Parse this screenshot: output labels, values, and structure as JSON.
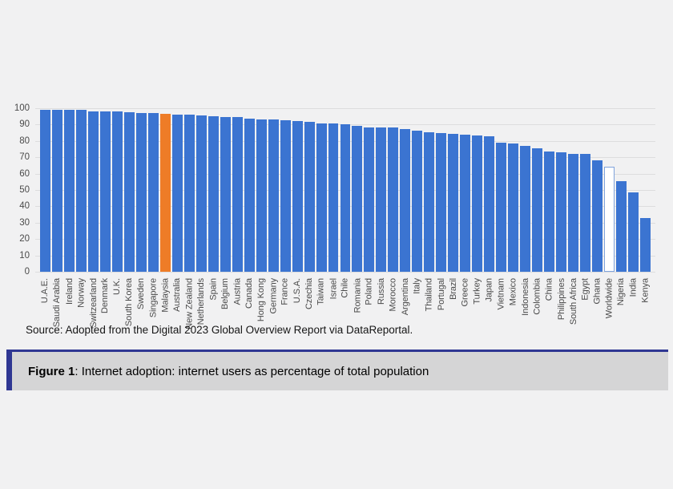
{
  "page": {
    "background": "#F1F1F2"
  },
  "source_note": "Source: Adopted from the Digital 2023 Global Overview Report via DataReportal.",
  "caption": {
    "label": "Figure 1",
    "text": ": Internet adoption: internet users as percentage of total population",
    "accent_color": "#2F3793",
    "background": "#D5D5D6"
  },
  "chart_data": {
    "type": "bar",
    "title": "",
    "xlabel": "",
    "ylabel": "",
    "ylim": [
      0,
      100
    ],
    "ytick_interval": 10,
    "grid": true,
    "legend": "none",
    "bar_color": "#3B74D1",
    "highlight_color": "#EE7C27",
    "outline_fill": "#FFFFFF",
    "outline_border": "#7FA3DC",
    "highlighted_category": "Malaysia",
    "outlined_category": "Worldwide",
    "categories": [
      "U.A.E.",
      "Saudi Arabia",
      "Ireland",
      "Norway",
      "Switzearland",
      "Denmark",
      "U.K.",
      "South Korea",
      "Sweden",
      "Singapore",
      "Malaysia",
      "Australia",
      "New Zealand",
      "Netherlands",
      "Spain",
      "Belgium",
      "Austria",
      "Canada",
      "Hong Kong",
      "Germany",
      "France",
      "U.S.A.",
      "Czechia",
      "Taiwan",
      "Israel",
      "Chile",
      "Romania",
      "Poland",
      "Russia",
      "Morocco",
      "Argentina",
      "Italy",
      "Thailand",
      "Portugal",
      "Brazil",
      "Greece",
      "Turkey",
      "Japan",
      "Vietnam",
      "Mexico",
      "Indonesia",
      "Colombia",
      "China",
      "Philippines",
      "South Africa",
      "Egypt",
      "Ghana",
      "Worldwide",
      "Nigeria",
      "India",
      "Kenya"
    ],
    "values": [
      99.0,
      99.0,
      99.0,
      99.0,
      98.1,
      98.0,
      97.8,
      97.6,
      97.2,
      96.9,
      96.8,
      96.2,
      95.9,
      95.6,
      94.9,
      94.5,
      94.4,
      93.8,
      93.1,
      93.0,
      92.6,
      92.0,
      91.8,
      90.7,
      90.5,
      90.2,
      89.0,
      88.4,
      88.2,
      88.1,
      87.2,
      86.1,
      85.3,
      84.9,
      84.3,
      83.9,
      83.4,
      82.9,
      79.1,
      78.6,
      77.0,
      75.7,
      73.7,
      73.1,
      72.3,
      72.2,
      68.2,
      64.4,
      55.4,
      48.7,
      32.7
    ]
  }
}
